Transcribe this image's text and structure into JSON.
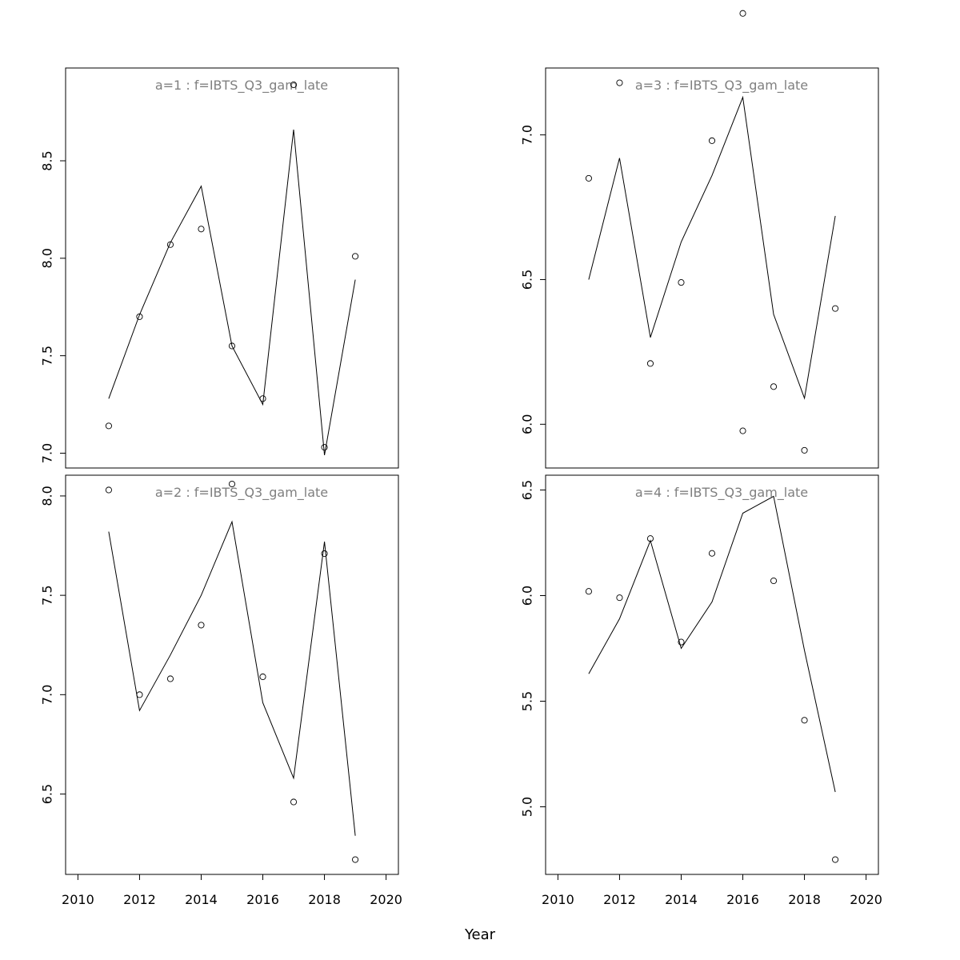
{
  "xlabel": "Year",
  "chart_data": [
    {
      "type": "line",
      "title": "a=1  :  f=IBTS_Q3_gam_late",
      "xlim": [
        2010,
        2020
      ],
      "ylim": [
        7.0,
        8.9
      ],
      "x_ticks": [
        "2010",
        "2012",
        "2014",
        "2016",
        "2018",
        "2020"
      ],
      "y_ticks": [
        "7.0",
        "7.5",
        "8.0",
        "8.5"
      ],
      "x": [
        2011,
        2012,
        2013,
        2014,
        2015,
        2016,
        2017,
        2018,
        2019
      ],
      "series": [
        {
          "style": "line",
          "values": [
            7.28,
            7.71,
            8.08,
            8.37,
            7.55,
            7.25,
            8.66,
            6.99,
            7.89
          ]
        },
        {
          "style": "points",
          "values": [
            7.14,
            7.7,
            8.07,
            8.15,
            7.55,
            7.28,
            8.89,
            7.03,
            8.01
          ]
        }
      ]
    },
    {
      "type": "line",
      "title": "a=3  :  f=IBTS_Q3_gam_late",
      "xlim": [
        2010,
        2020
      ],
      "ylim": [
        5.9,
        7.18
      ],
      "x_ticks": [
        "2010",
        "2012",
        "2014",
        "2016",
        "2018",
        "2020"
      ],
      "y_ticks": [
        "6.0",
        "6.5",
        "7.0"
      ],
      "x": [
        2011,
        2012,
        2013,
        2014,
        2015,
        2016,
        2017,
        2018,
        2019
      ],
      "series": [
        {
          "style": "line",
          "values": [
            6.5,
            6.92,
            6.3,
            6.63,
            6.86,
            7.13,
            6.38,
            6.09,
            6.72
          ]
        },
        {
          "style": "points",
          "values": [
            6.85,
            7.18,
            6.21,
            6.49,
            6.98,
            7.42,
            6.13,
            5.91,
            6.4
          ]
        }
      ]
    },
    {
      "type": "line",
      "title": "a=2  :  f=IBTS_Q3_gam_late",
      "xlim": [
        2010,
        2020
      ],
      "ylim": [
        6.17,
        8.03
      ],
      "x_ticks": [
        "2010",
        "2012",
        "2014",
        "2016",
        "2018",
        "2020"
      ],
      "y_ticks": [
        "6.5",
        "7.0",
        "7.5",
        "8.0"
      ],
      "x": [
        2011,
        2012,
        2013,
        2014,
        2015,
        2016,
        2017,
        2018,
        2019
      ],
      "series": [
        {
          "style": "line",
          "values": [
            7.82,
            6.92,
            7.2,
            7.5,
            7.87,
            6.96,
            6.58,
            7.77,
            6.29
          ]
        },
        {
          "style": "points",
          "values": [
            8.03,
            7.0,
            7.08,
            7.35,
            8.06,
            7.09,
            6.46,
            7.71,
            6.17
          ]
        }
      ]
    },
    {
      "type": "line",
      "title": "a=4  :  f=IBTS_Q3_gam_late",
      "xlim": [
        2010,
        2020
      ],
      "ylim": [
        4.75,
        6.5
      ],
      "x_ticks": [
        "2010",
        "2012",
        "2014",
        "2016",
        "2018",
        "2020"
      ],
      "y_ticks": [
        "5.0",
        "5.5",
        "6.0",
        "6.5"
      ],
      "x": [
        2011,
        2012,
        2013,
        2014,
        2015,
        2016,
        2017,
        2018,
        2019
      ],
      "series": [
        {
          "style": "line",
          "values": [
            5.63,
            5.89,
            6.26,
            5.75,
            5.97,
            6.39,
            6.47,
            5.74,
            5.07
          ]
        },
        {
          "style": "points",
          "values": [
            6.02,
            5.99,
            6.27,
            5.78,
            6.2,
            6.78,
            6.07,
            5.41,
            4.75
          ]
        }
      ]
    }
  ]
}
